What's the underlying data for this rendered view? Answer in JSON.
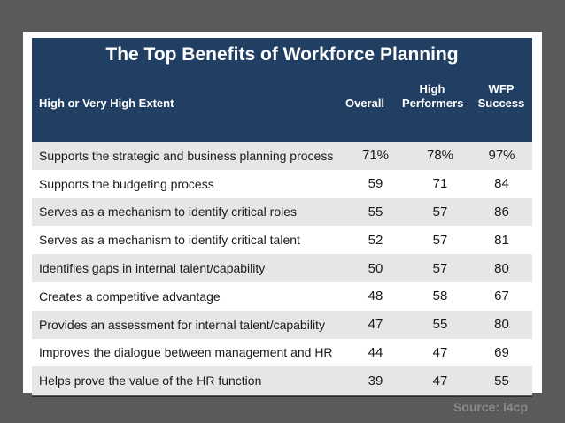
{
  "chart_data": {
    "type": "table",
    "title": "The Top Benefits of Workforce Planning",
    "columns": [
      "High or Very High Extent",
      "Overall",
      "High Performers",
      "WFP Success"
    ],
    "rows": [
      {
        "label": "Supports the strategic and business planning process",
        "overall": "71%",
        "high_performers": "78%",
        "wfp_success": "97%"
      },
      {
        "label": "Supports the budgeting process",
        "overall": "59",
        "high_performers": "71",
        "wfp_success": "84"
      },
      {
        "label": "Serves as a mechanism to identify critical roles",
        "overall": "55",
        "high_performers": "57",
        "wfp_success": "86"
      },
      {
        "label": "Serves as a mechanism to identify critical talent",
        "overall": "52",
        "high_performers": "57",
        "wfp_success": "81"
      },
      {
        "label": "Identifies gaps in internal talent/capability",
        "overall": "50",
        "high_performers": "57",
        "wfp_success": "80"
      },
      {
        "label": "Creates a competitive advantage",
        "overall": "48",
        "high_performers": "58",
        "wfp_success": "67"
      },
      {
        "label": "Provides an assessment for internal talent/capability",
        "overall": "47",
        "high_performers": "55",
        "wfp_success": "80"
      },
      {
        "label": "Improves the dialogue between management and HR",
        "overall": "44",
        "high_performers": "47",
        "wfp_success": "69"
      },
      {
        "label": "Helps prove the value of the HR function",
        "overall": "39",
        "high_performers": "47",
        "wfp_success": "55"
      }
    ],
    "source": "Source: i4cp"
  },
  "header": {
    "row_label": "High or Very High Extent",
    "col_overall": "Overall",
    "col_high_line1": "High",
    "col_high_line2": "Performers",
    "col_wfp_line1": "WFP",
    "col_wfp_line2": "Success"
  },
  "colors": {
    "header_bg": "#213f63",
    "row_shade": "#e6e6e6",
    "frame_bg": "#5a5a5a"
  }
}
